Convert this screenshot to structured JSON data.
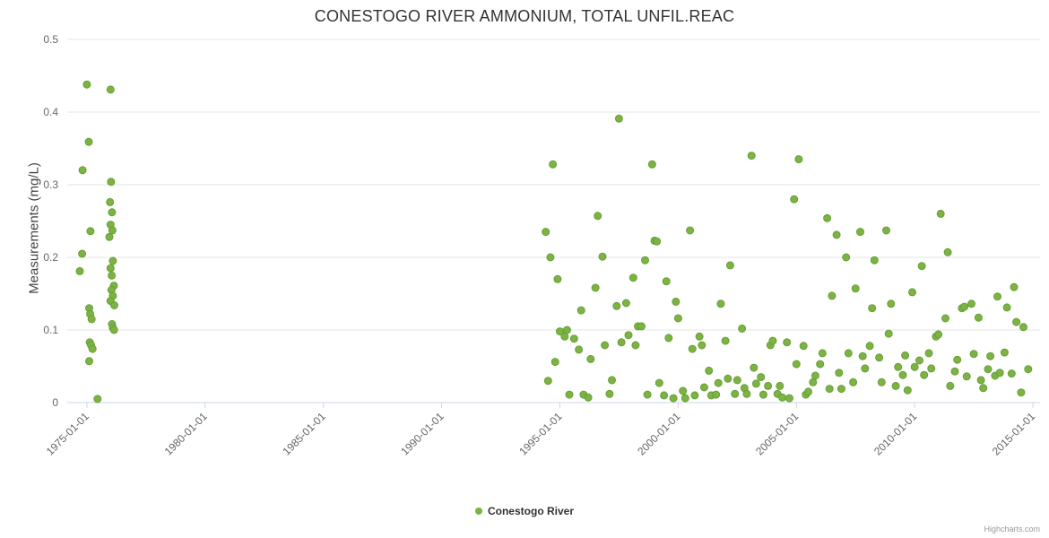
{
  "chart": {
    "title": "CONESTOGO RIVER AMMONIUM, TOTAL UNFIL.REAC",
    "credits_label": "Highcharts.com"
  },
  "chart_data": {
    "type": "scatter",
    "title": "CONESTOGO RIVER AMMONIUM, TOTAL UNFIL.REAC",
    "xlabel": "",
    "ylabel": "Measurements (mg/L)",
    "ylim": [
      0,
      0.5
    ],
    "xlim_years": [
      1974.17,
      2015.3
    ],
    "grid": "horizontal-only",
    "legend_position": "bottom-center",
    "colors": {
      "point": "#7cb342",
      "point_stroke": "#689f38",
      "gridline": "#e6e6e6",
      "axis_line": "#ccd6eb",
      "tick_label": "#666666"
    },
    "y_ticks": [
      {
        "value": 0.0,
        "label": "0"
      },
      {
        "value": 0.1,
        "label": "0.1"
      },
      {
        "value": 0.2,
        "label": "0.2"
      },
      {
        "value": 0.3,
        "label": "0.3"
      },
      {
        "value": 0.4,
        "label": "0.4"
      },
      {
        "value": 0.5,
        "label": "0.5"
      }
    ],
    "x_ticks": [
      {
        "year": 1975,
        "label": "1975-01-01"
      },
      {
        "year": 1980,
        "label": "1980-01-01"
      },
      {
        "year": 1985,
        "label": "1985-01-01"
      },
      {
        "year": 1990,
        "label": "1990-01-01"
      },
      {
        "year": 1995,
        "label": "1995-01-01"
      },
      {
        "year": 2000,
        "label": "2000-01-01"
      },
      {
        "year": 2005,
        "label": "2005-01-01"
      },
      {
        "year": 2010,
        "label": "2010-01-01"
      },
      {
        "year": 2015,
        "label": "2015-01-01"
      }
    ],
    "series": [
      {
        "name": "Conestogo River",
        "color": "#7cb342",
        "points": [
          [
            1974.7,
            0.181
          ],
          [
            1974.8,
            0.205
          ],
          [
            1974.82,
            0.32
          ],
          [
            1975.0,
            0.438
          ],
          [
            1975.08,
            0.359
          ],
          [
            1975.15,
            0.236
          ],
          [
            1975.1,
            0.13
          ],
          [
            1975.14,
            0.122
          ],
          [
            1975.2,
            0.115
          ],
          [
            1975.12,
            0.083
          ],
          [
            1975.18,
            0.079
          ],
          [
            1975.24,
            0.074
          ],
          [
            1975.1,
            0.057
          ],
          [
            1975.45,
            0.005
          ],
          [
            1976.0,
            0.431
          ],
          [
            1976.02,
            0.304
          ],
          [
            1975.98,
            0.276
          ],
          [
            1976.06,
            0.262
          ],
          [
            1976.0,
            0.245
          ],
          [
            1976.08,
            0.237
          ],
          [
            1975.95,
            0.228
          ],
          [
            1976.1,
            0.195
          ],
          [
            1976.0,
            0.185
          ],
          [
            1976.05,
            0.175
          ],
          [
            1976.14,
            0.161
          ],
          [
            1976.04,
            0.155
          ],
          [
            1976.1,
            0.147
          ],
          [
            1976.0,
            0.14
          ],
          [
            1976.16,
            0.134
          ],
          [
            1976.06,
            0.108
          ],
          [
            1976.1,
            0.103
          ],
          [
            1976.15,
            0.1
          ],
          [
            1994.4,
            0.235
          ],
          [
            1994.6,
            0.2
          ],
          [
            1994.7,
            0.328
          ],
          [
            1994.9,
            0.17
          ],
          [
            1994.5,
            0.03
          ],
          [
            1994.8,
            0.056
          ],
          [
            1995.0,
            0.098
          ],
          [
            1995.2,
            0.091
          ],
          [
            1995.3,
            0.1
          ],
          [
            1995.4,
            0.011
          ],
          [
            1995.6,
            0.088
          ],
          [
            1995.8,
            0.073
          ],
          [
            1995.9,
            0.127
          ],
          [
            1996.0,
            0.011
          ],
          [
            1996.2,
            0.007
          ],
          [
            1996.3,
            0.06
          ],
          [
            1996.5,
            0.158
          ],
          [
            1996.6,
            0.257
          ],
          [
            1996.8,
            0.201
          ],
          [
            1996.9,
            0.079
          ],
          [
            1997.1,
            0.012
          ],
          [
            1997.2,
            0.031
          ],
          [
            1997.4,
            0.133
          ],
          [
            1997.5,
            0.391
          ],
          [
            1997.6,
            0.083
          ],
          [
            1997.8,
            0.137
          ],
          [
            1997.9,
            0.093
          ],
          [
            1998.1,
            0.172
          ],
          [
            1998.2,
            0.079
          ],
          [
            1998.3,
            0.105
          ],
          [
            1998.45,
            0.105
          ],
          [
            1998.6,
            0.196
          ],
          [
            1998.7,
            0.011
          ],
          [
            1998.9,
            0.328
          ],
          [
            1999.0,
            0.223
          ],
          [
            1999.1,
            0.222
          ],
          [
            1999.2,
            0.027
          ],
          [
            1999.4,
            0.01
          ],
          [
            1999.5,
            0.167
          ],
          [
            1999.6,
            0.089
          ],
          [
            1999.8,
            0.006
          ],
          [
            1999.9,
            0.139
          ],
          [
            2000.0,
            0.116
          ],
          [
            2000.2,
            0.016
          ],
          [
            2000.3,
            0.006
          ],
          [
            2000.5,
            0.237
          ],
          [
            2000.6,
            0.074
          ],
          [
            2000.7,
            0.01
          ],
          [
            2000.9,
            0.091
          ],
          [
            2001.0,
            0.079
          ],
          [
            2001.1,
            0.021
          ],
          [
            2001.3,
            0.044
          ],
          [
            2001.4,
            0.01
          ],
          [
            2001.6,
            0.011
          ],
          [
            2001.7,
            0.027
          ],
          [
            2001.8,
            0.136
          ],
          [
            2002.0,
            0.085
          ],
          [
            2002.1,
            0.033
          ],
          [
            2002.2,
            0.189
          ],
          [
            2002.4,
            0.012
          ],
          [
            2002.5,
            0.031
          ],
          [
            2002.7,
            0.102
          ],
          [
            2002.8,
            0.02
          ],
          [
            2002.9,
            0.012
          ],
          [
            2003.1,
            0.34
          ],
          [
            2003.2,
            0.048
          ],
          [
            2003.3,
            0.026
          ],
          [
            2003.5,
            0.035
          ],
          [
            2003.6,
            0.011
          ],
          [
            2003.8,
            0.023
          ],
          [
            2003.9,
            0.079
          ],
          [
            2004.0,
            0.085
          ],
          [
            2004.2,
            0.012
          ],
          [
            2004.3,
            0.023
          ],
          [
            2004.4,
            0.007
          ],
          [
            2004.6,
            0.083
          ],
          [
            2004.7,
            0.006
          ],
          [
            2004.9,
            0.28
          ],
          [
            2005.0,
            0.053
          ],
          [
            2005.1,
            0.335
          ],
          [
            2005.3,
            0.078
          ],
          [
            2005.4,
            0.011
          ],
          [
            2005.5,
            0.015
          ],
          [
            2005.7,
            0.028
          ],
          [
            2005.8,
            0.037
          ],
          [
            2006.0,
            0.053
          ],
          [
            2006.1,
            0.068
          ],
          [
            2006.3,
            0.254
          ],
          [
            2006.4,
            0.019
          ],
          [
            2006.5,
            0.147
          ],
          [
            2006.7,
            0.231
          ],
          [
            2006.8,
            0.041
          ],
          [
            2006.9,
            0.019
          ],
          [
            2007.1,
            0.2
          ],
          [
            2007.2,
            0.068
          ],
          [
            2007.4,
            0.028
          ],
          [
            2007.5,
            0.157
          ],
          [
            2007.7,
            0.235
          ],
          [
            2007.8,
            0.064
          ],
          [
            2007.9,
            0.047
          ],
          [
            2008.1,
            0.078
          ],
          [
            2008.2,
            0.13
          ],
          [
            2008.3,
            0.196
          ],
          [
            2008.5,
            0.062
          ],
          [
            2008.6,
            0.028
          ],
          [
            2008.8,
            0.237
          ],
          [
            2008.9,
            0.095
          ],
          [
            2009.0,
            0.136
          ],
          [
            2009.2,
            0.023
          ],
          [
            2009.3,
            0.049
          ],
          [
            2009.5,
            0.038
          ],
          [
            2009.6,
            0.065
          ],
          [
            2009.7,
            0.017
          ],
          [
            2009.9,
            0.152
          ],
          [
            2010.0,
            0.049
          ],
          [
            2010.2,
            0.058
          ],
          [
            2010.3,
            0.188
          ],
          [
            2010.4,
            0.038
          ],
          [
            2010.6,
            0.068
          ],
          [
            2010.7,
            0.047
          ],
          [
            2010.9,
            0.091
          ],
          [
            2011.0,
            0.094
          ],
          [
            2011.1,
            0.26
          ],
          [
            2011.3,
            0.116
          ],
          [
            2011.4,
            0.207
          ],
          [
            2011.5,
            0.023
          ],
          [
            2011.7,
            0.043
          ],
          [
            2011.8,
            0.059
          ],
          [
            2012.0,
            0.13
          ],
          [
            2012.1,
            0.132
          ],
          [
            2012.2,
            0.036
          ],
          [
            2012.4,
            0.136
          ],
          [
            2012.5,
            0.067
          ],
          [
            2012.7,
            0.117
          ],
          [
            2012.8,
            0.031
          ],
          [
            2012.9,
            0.02
          ],
          [
            2013.1,
            0.046
          ],
          [
            2013.2,
            0.064
          ],
          [
            2013.4,
            0.037
          ],
          [
            2013.5,
            0.146
          ],
          [
            2013.6,
            0.041
          ],
          [
            2013.8,
            0.069
          ],
          [
            2013.9,
            0.131
          ],
          [
            2014.1,
            0.04
          ],
          [
            2014.2,
            0.159
          ],
          [
            2014.3,
            0.111
          ],
          [
            2014.5,
            0.014
          ],
          [
            2014.6,
            0.104
          ],
          [
            2014.8,
            0.046
          ]
        ]
      }
    ]
  }
}
